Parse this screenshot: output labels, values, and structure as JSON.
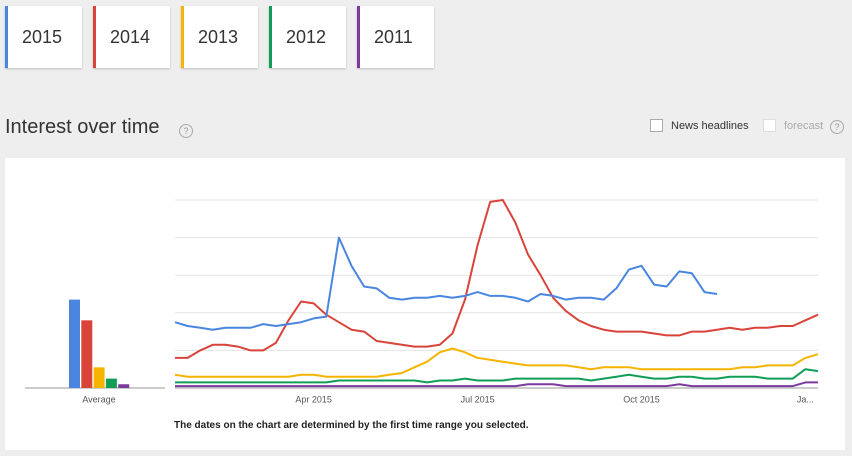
{
  "title": "Interest over time",
  "help": "?",
  "options": [
    "News headlines",
    "forecast"
  ],
  "note": "The dates on the chart are determined by the first time range you selected.",
  "chart_data": {
    "type": "line",
    "average_label": "Average",
    "categories": [
      null,
      null,
      null,
      null,
      null,
      null,
      null,
      null,
      null,
      null,
      null,
      "Apr 2015",
      null,
      null,
      null,
      null,
      null,
      null,
      null,
      null,
      null,
      null,
      null,
      null,
      "Jul 2015",
      null,
      null,
      null,
      null,
      null,
      null,
      null,
      null,
      null,
      null,
      null,
      null,
      "Oct 2015",
      null,
      null,
      null,
      null,
      null,
      null,
      null,
      null,
      null,
      null,
      null,
      null,
      "Ja...",
      null
    ],
    "ylim": [
      0,
      100
    ],
    "yticks": [
      0,
      20,
      40,
      60,
      80,
      100
    ],
    "grid": true,
    "series": [
      {
        "name": "2015",
        "color": "#4a86e0",
        "average": 47,
        "values": [
          35,
          33,
          32,
          31,
          32,
          32,
          32,
          34,
          33,
          34,
          35,
          37,
          38,
          80,
          65,
          54,
          53,
          48,
          47,
          48,
          48,
          49,
          48,
          49,
          51,
          49,
          49,
          48,
          46,
          50,
          49,
          47,
          48,
          48,
          47,
          53,
          63,
          65,
          55,
          54,
          62,
          61,
          51,
          50,
          null,
          null,
          null,
          null,
          null,
          null,
          null,
          null
        ]
      },
      {
        "name": "2014",
        "color": "#d9443a",
        "average": 36,
        "values": [
          16,
          16,
          20,
          23,
          23,
          22,
          20,
          20,
          24,
          36,
          46,
          45,
          39,
          35,
          31,
          30,
          25,
          24,
          23,
          22,
          22,
          23,
          29,
          47,
          76,
          99,
          100,
          88,
          71,
          60,
          48,
          41,
          36,
          33,
          31,
          30,
          30,
          30,
          29,
          28,
          28,
          30,
          30,
          31,
          32,
          31,
          32,
          32,
          33,
          33,
          36,
          39
        ]
      },
      {
        "name": "2013",
        "color": "#f4b400",
        "average": 11,
        "values": [
          7,
          6,
          6,
          6,
          6,
          6,
          6,
          6,
          6,
          6,
          7,
          7,
          6,
          6,
          6,
          6,
          6,
          7,
          8,
          11,
          14,
          19,
          21,
          19,
          16,
          15,
          14,
          13,
          12,
          12,
          12,
          12,
          11,
          10,
          11,
          11,
          11,
          10,
          10,
          10,
          10,
          10,
          10,
          10,
          10,
          11,
          11,
          12,
          12,
          12,
          16,
          18
        ]
      },
      {
        "name": "2012",
        "color": "#0f9d58",
        "average": 5,
        "values": [
          3,
          3,
          3,
          3,
          3,
          3,
          3,
          3,
          3,
          3,
          3,
          3,
          3,
          4,
          4,
          4,
          4,
          4,
          4,
          4,
          3,
          4,
          4,
          5,
          4,
          4,
          4,
          5,
          5,
          5,
          5,
          5,
          5,
          4,
          5,
          6,
          7,
          6,
          5,
          5,
          6,
          6,
          5,
          5,
          6,
          6,
          6,
          5,
          5,
          5,
          10,
          9
        ]
      },
      {
        "name": "2011",
        "color": "#7b3b9c",
        "average": 2,
        "values": [
          1,
          1,
          1,
          1,
          1,
          1,
          1,
          1,
          1,
          1,
          1,
          1,
          1,
          1,
          1,
          1,
          1,
          1,
          1,
          1,
          1,
          1,
          1,
          1,
          1,
          1,
          1,
          1,
          2,
          2,
          2,
          1,
          1,
          1,
          1,
          1,
          1,
          1,
          1,
          1,
          2,
          1,
          1,
          1,
          1,
          1,
          1,
          1,
          1,
          1,
          3,
          3
        ]
      }
    ]
  }
}
